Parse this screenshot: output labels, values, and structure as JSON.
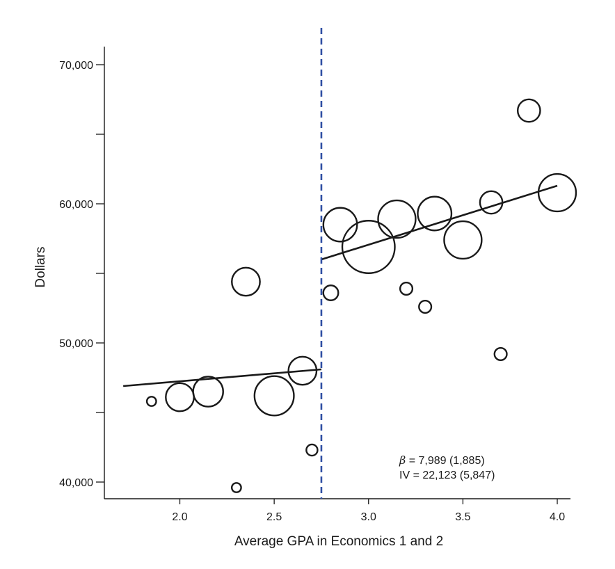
{
  "chart_data": {
    "type": "scatter",
    "title": "",
    "xlabel": "Average GPA in Economics 1 and 2",
    "ylabel": "Dollars",
    "xlim": [
      1.6,
      4.07
    ],
    "ylim": [
      38800,
      71300
    ],
    "x_ticks": [
      2.0,
      2.5,
      3.0,
      3.5,
      4.0
    ],
    "x_tick_labels": [
      "2.0",
      "2.5",
      "3.0",
      "3.5",
      "4.0"
    ],
    "y_ticks": [
      40000,
      45000,
      50000,
      55000,
      60000,
      65000,
      70000
    ],
    "y_tick_labels": [
      "40,000",
      "",
      "50,000",
      "",
      "60,000",
      "",
      "70,000"
    ],
    "grid": false,
    "legend": "none",
    "cutoff": {
      "x": 2.75,
      "style": "dashed",
      "color": "#2f4fa3"
    },
    "points": [
      {
        "x": 1.85,
        "y": 45800,
        "size": 1.0
      },
      {
        "x": 2.0,
        "y": 46100,
        "size": 6.0
      },
      {
        "x": 2.15,
        "y": 46500,
        "size": 6.5
      },
      {
        "x": 2.3,
        "y": 39600,
        "size": 1.0
      },
      {
        "x": 2.35,
        "y": 54400,
        "size": 6.0
      },
      {
        "x": 2.5,
        "y": 46200,
        "size": 9.0
      },
      {
        "x": 2.65,
        "y": 48000,
        "size": 6.0
      },
      {
        "x": 2.7,
        "y": 42300,
        "size": 1.5
      },
      {
        "x": 2.8,
        "y": 53600,
        "size": 2.5
      },
      {
        "x": 2.85,
        "y": 58500,
        "size": 7.5
      },
      {
        "x": 3.0,
        "y": 56900,
        "size": 12.5
      },
      {
        "x": 3.15,
        "y": 58900,
        "size": 8.5
      },
      {
        "x": 3.2,
        "y": 53900,
        "size": 1.8
      },
      {
        "x": 3.3,
        "y": 52600,
        "size": 1.8
      },
      {
        "x": 3.35,
        "y": 59300,
        "size": 7.5
      },
      {
        "x": 3.5,
        "y": 57400,
        "size": 8.5
      },
      {
        "x": 3.65,
        "y": 60100,
        "size": 4.5
      },
      {
        "x": 3.7,
        "y": 49200,
        "size": 1.8
      },
      {
        "x": 3.85,
        "y": 66700,
        "size": 4.5
      },
      {
        "x": 4.0,
        "y": 60800,
        "size": 8.5
      }
    ],
    "fit_lines": [
      {
        "x": [
          1.7,
          2.75
        ],
        "y": [
          46900,
          48100
        ]
      },
      {
        "x": [
          2.75,
          4.0
        ],
        "y": [
          56000,
          61300
        ]
      }
    ],
    "annotations": [
      {
        "symbol": "β",
        "text": " = 7,989 (1,885)"
      },
      {
        "symbol": "",
        "text": "IV = 22,123 (5,847)"
      }
    ]
  }
}
